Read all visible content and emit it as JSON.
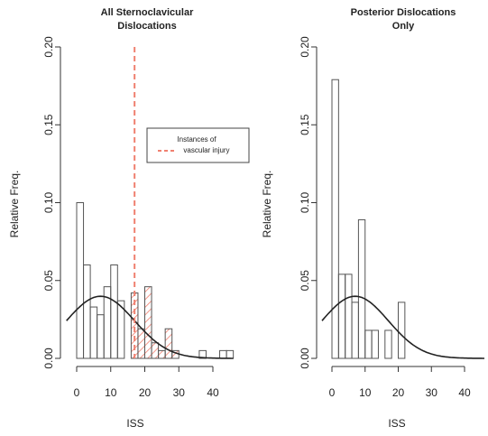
{
  "chart_data": [
    {
      "type": "bar",
      "title": [
        "All Sternoclavicular",
        "Dislocations"
      ],
      "xlabel": "ISS",
      "ylabel": "Relative Freq.",
      "xlim": [
        -3,
        46
      ],
      "ylim": [
        0,
        0.2
      ],
      "xticks": [
        "0",
        "10",
        "20",
        "30",
        "40"
      ],
      "yticks": [
        "0.00",
        "0.05",
        "0.10",
        "0.15",
        "0.20"
      ],
      "bin_width": 2,
      "bins": [
        {
          "x0": 0,
          "x1": 2,
          "value": 0.1
        },
        {
          "x0": 2,
          "x1": 4,
          "value": 0.06
        },
        {
          "x0": 4,
          "x1": 6,
          "value": 0.033
        },
        {
          "x0": 6,
          "x1": 8,
          "value": 0.028
        },
        {
          "x0": 8,
          "x1": 10,
          "value": 0.046
        },
        {
          "x0": 10,
          "x1": 12,
          "value": 0.06
        },
        {
          "x0": 12,
          "x1": 14,
          "value": 0.037
        },
        {
          "x0": 14,
          "x1": 16,
          "value": 0.0
        },
        {
          "x0": 16,
          "x1": 18,
          "value": 0.042
        },
        {
          "x0": 18,
          "x1": 20,
          "value": 0.019
        },
        {
          "x0": 20,
          "x1": 22,
          "value": 0.046
        },
        {
          "x0": 22,
          "x1": 24,
          "value": 0.01
        },
        {
          "x0": 24,
          "x1": 26,
          "value": 0.005
        },
        {
          "x0": 26,
          "x1": 28,
          "value": 0.019
        },
        {
          "x0": 28,
          "x1": 30,
          "value": 0.005
        },
        {
          "x0": 30,
          "x1": 32,
          "value": 0.0
        },
        {
          "x0": 32,
          "x1": 34,
          "value": 0.0
        },
        {
          "x0": 34,
          "x1": 36,
          "value": 0.0
        },
        {
          "x0": 36,
          "x1": 38,
          "value": 0.005
        },
        {
          "x0": 38,
          "x1": 40,
          "value": 0.0
        },
        {
          "x0": 40,
          "x1": 42,
          "value": 0.0
        },
        {
          "x0": 42,
          "x1": 44,
          "value": 0.005
        },
        {
          "x0": 44,
          "x1": 46,
          "value": 0.005
        }
      ],
      "density_curve": {
        "mean": 7,
        "sd": 10,
        "color": "#222222"
      },
      "vline": {
        "x": 17,
        "color": "#f08070",
        "style": "dashed"
      },
      "vascular_injury_hatch": {
        "x_range": [
          16,
          34
        ],
        "color": "#f08070"
      },
      "legend": {
        "position": "upper-right",
        "entries": [
          "Instances of",
          "vascular injury"
        ],
        "color": "#f08070"
      }
    },
    {
      "type": "bar",
      "title": [
        "Posterior Dislocations",
        "Only"
      ],
      "xlabel": "ISS",
      "ylabel": "Relative Freq.",
      "xlim": [
        -3,
        46
      ],
      "ylim": [
        0,
        0.2
      ],
      "xticks": [
        "0",
        "10",
        "20",
        "30",
        "40"
      ],
      "yticks": [
        "0.00",
        "0.05",
        "0.10",
        "0.15",
        "0.20"
      ],
      "bin_width": 2,
      "bins": [
        {
          "x0": 0,
          "x1": 2,
          "value": 0.179
        },
        {
          "x0": 2,
          "x1": 4,
          "value": 0.054
        },
        {
          "x0": 4,
          "x1": 6,
          "value": 0.054
        },
        {
          "x0": 6,
          "x1": 8,
          "value": 0.036
        },
        {
          "x0": 8,
          "x1": 10,
          "value": 0.089
        },
        {
          "x0": 10,
          "x1": 12,
          "value": 0.018
        },
        {
          "x0": 12,
          "x1": 14,
          "value": 0.018
        },
        {
          "x0": 14,
          "x1": 16,
          "value": 0.0
        },
        {
          "x0": 16,
          "x1": 18,
          "value": 0.018
        },
        {
          "x0": 18,
          "x1": 20,
          "value": 0.0
        },
        {
          "x0": 20,
          "x1": 22,
          "value": 0.036
        }
      ],
      "density_curve": {
        "mean": 7,
        "sd": 10,
        "color": "#222222"
      }
    }
  ]
}
